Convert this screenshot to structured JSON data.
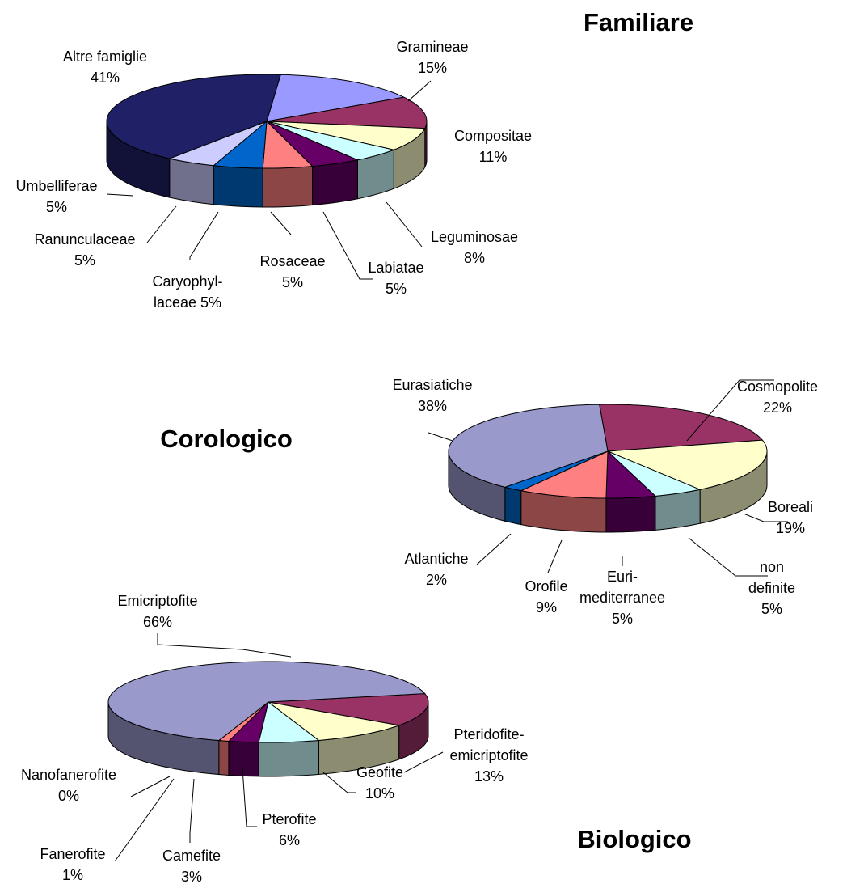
{
  "chart_data": [
    {
      "type": "pie3d",
      "title": "Familiare",
      "categories": [
        "Gramineae",
        "Compositae",
        "Leguminosae",
        "Labiatae",
        "Rosaceae",
        "Caryophyl-\nlaceae",
        "Ranunculaceae",
        "Umbelliferae",
        "Altre famiglie"
      ],
      "values": [
        15,
        11,
        8,
        5,
        5,
        5,
        5,
        5,
        41
      ],
      "value_labels": [
        "15%",
        "11%",
        "8%",
        "5%",
        "5%",
        "5%",
        "5%",
        "5%",
        "41%"
      ],
      "colors": [
        "#9999ff",
        "#993366",
        "#ffffcc",
        "#ccffff",
        "#660066",
        "#ff8080",
        "#0066cc",
        "#ccccff",
        "#202066"
      ]
    },
    {
      "type": "pie3d",
      "title": "Corologico",
      "categories": [
        "Cosmopolite",
        "Boreali",
        "non definite",
        "Euri-\nmediterranee",
        "Orofile",
        "Atlantiche",
        "Eurasiatiche"
      ],
      "values": [
        22,
        19,
        5,
        5,
        9,
        2,
        38
      ],
      "value_labels": [
        "22%",
        "19%",
        "5%",
        "5%",
        "9%",
        "2%",
        "38%"
      ],
      "colors": [
        "#993366",
        "#ffffcc",
        "#ccffff",
        "#660066",
        "#ff8080",
        "#0066cc",
        "#9999cc"
      ]
    },
    {
      "type": "pie3d",
      "title": "Biologico",
      "categories": [
        "Pteridofite-\nemicriptofite",
        "Geofite",
        "Pterofite",
        "Camefite",
        "Fanerofite",
        "Nanofanerofite",
        "Emicriptofite"
      ],
      "values": [
        13,
        10,
        6,
        3,
        1,
        0,
        66
      ],
      "value_labels": [
        "13%",
        "10%",
        "6%",
        "3%",
        "1%",
        "0%",
        "66%"
      ],
      "colors": [
        "#993366",
        "#ffffcc",
        "#ccffff",
        "#660066",
        "#ff8080",
        "#0066cc",
        "#9999cc"
      ]
    }
  ]
}
